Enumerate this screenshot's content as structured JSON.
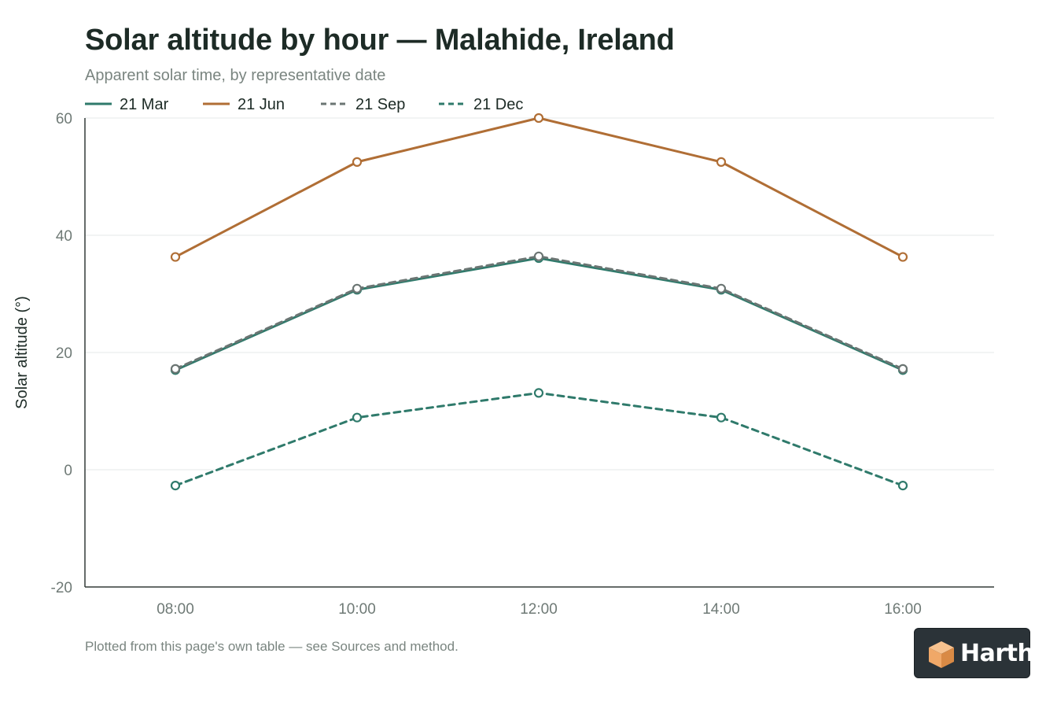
{
  "chart_data": {
    "type": "line",
    "title": "Solar altitude by hour — Malahide, Ireland",
    "subtitle": "Apparent solar time, by representative date",
    "xlabel": "",
    "ylabel": "Solar altitude (°)",
    "x": [
      "08:00",
      "10:00",
      "12:00",
      "14:00",
      "16:00"
    ],
    "yticks": [
      "60",
      "40",
      "20",
      "0",
      "-20"
    ],
    "ylim": [
      -20,
      60
    ],
    "grid": "horizontal",
    "legend_position": "top-left",
    "series": [
      {
        "name": "21 Mar",
        "values": [
          17.0,
          30.7,
          36.1,
          30.7,
          17.0
        ],
        "color": "#2f7a6b",
        "dash": "solid"
      },
      {
        "name": "21 Jun",
        "values": [
          36.3,
          52.5,
          60.0,
          52.5,
          36.3
        ],
        "color": "#b06e35",
        "dash": "solid"
      },
      {
        "name": "21 Sep",
        "values": [
          17.2,
          30.9,
          36.4,
          30.9,
          17.2
        ],
        "color": "#6b7573",
        "dash": "dashed"
      },
      {
        "name": "21 Dec",
        "values": [
          -2.7,
          8.9,
          13.1,
          8.9,
          -2.7
        ],
        "color": "#2f7a6b",
        "dash": "dashed"
      }
    ],
    "footnote": "Plotted from this page's own table — see Sources and method."
  },
  "brand": {
    "name": "Harth",
    "logo_icon": "harth-cube-icon",
    "accent": "#f0a868"
  }
}
